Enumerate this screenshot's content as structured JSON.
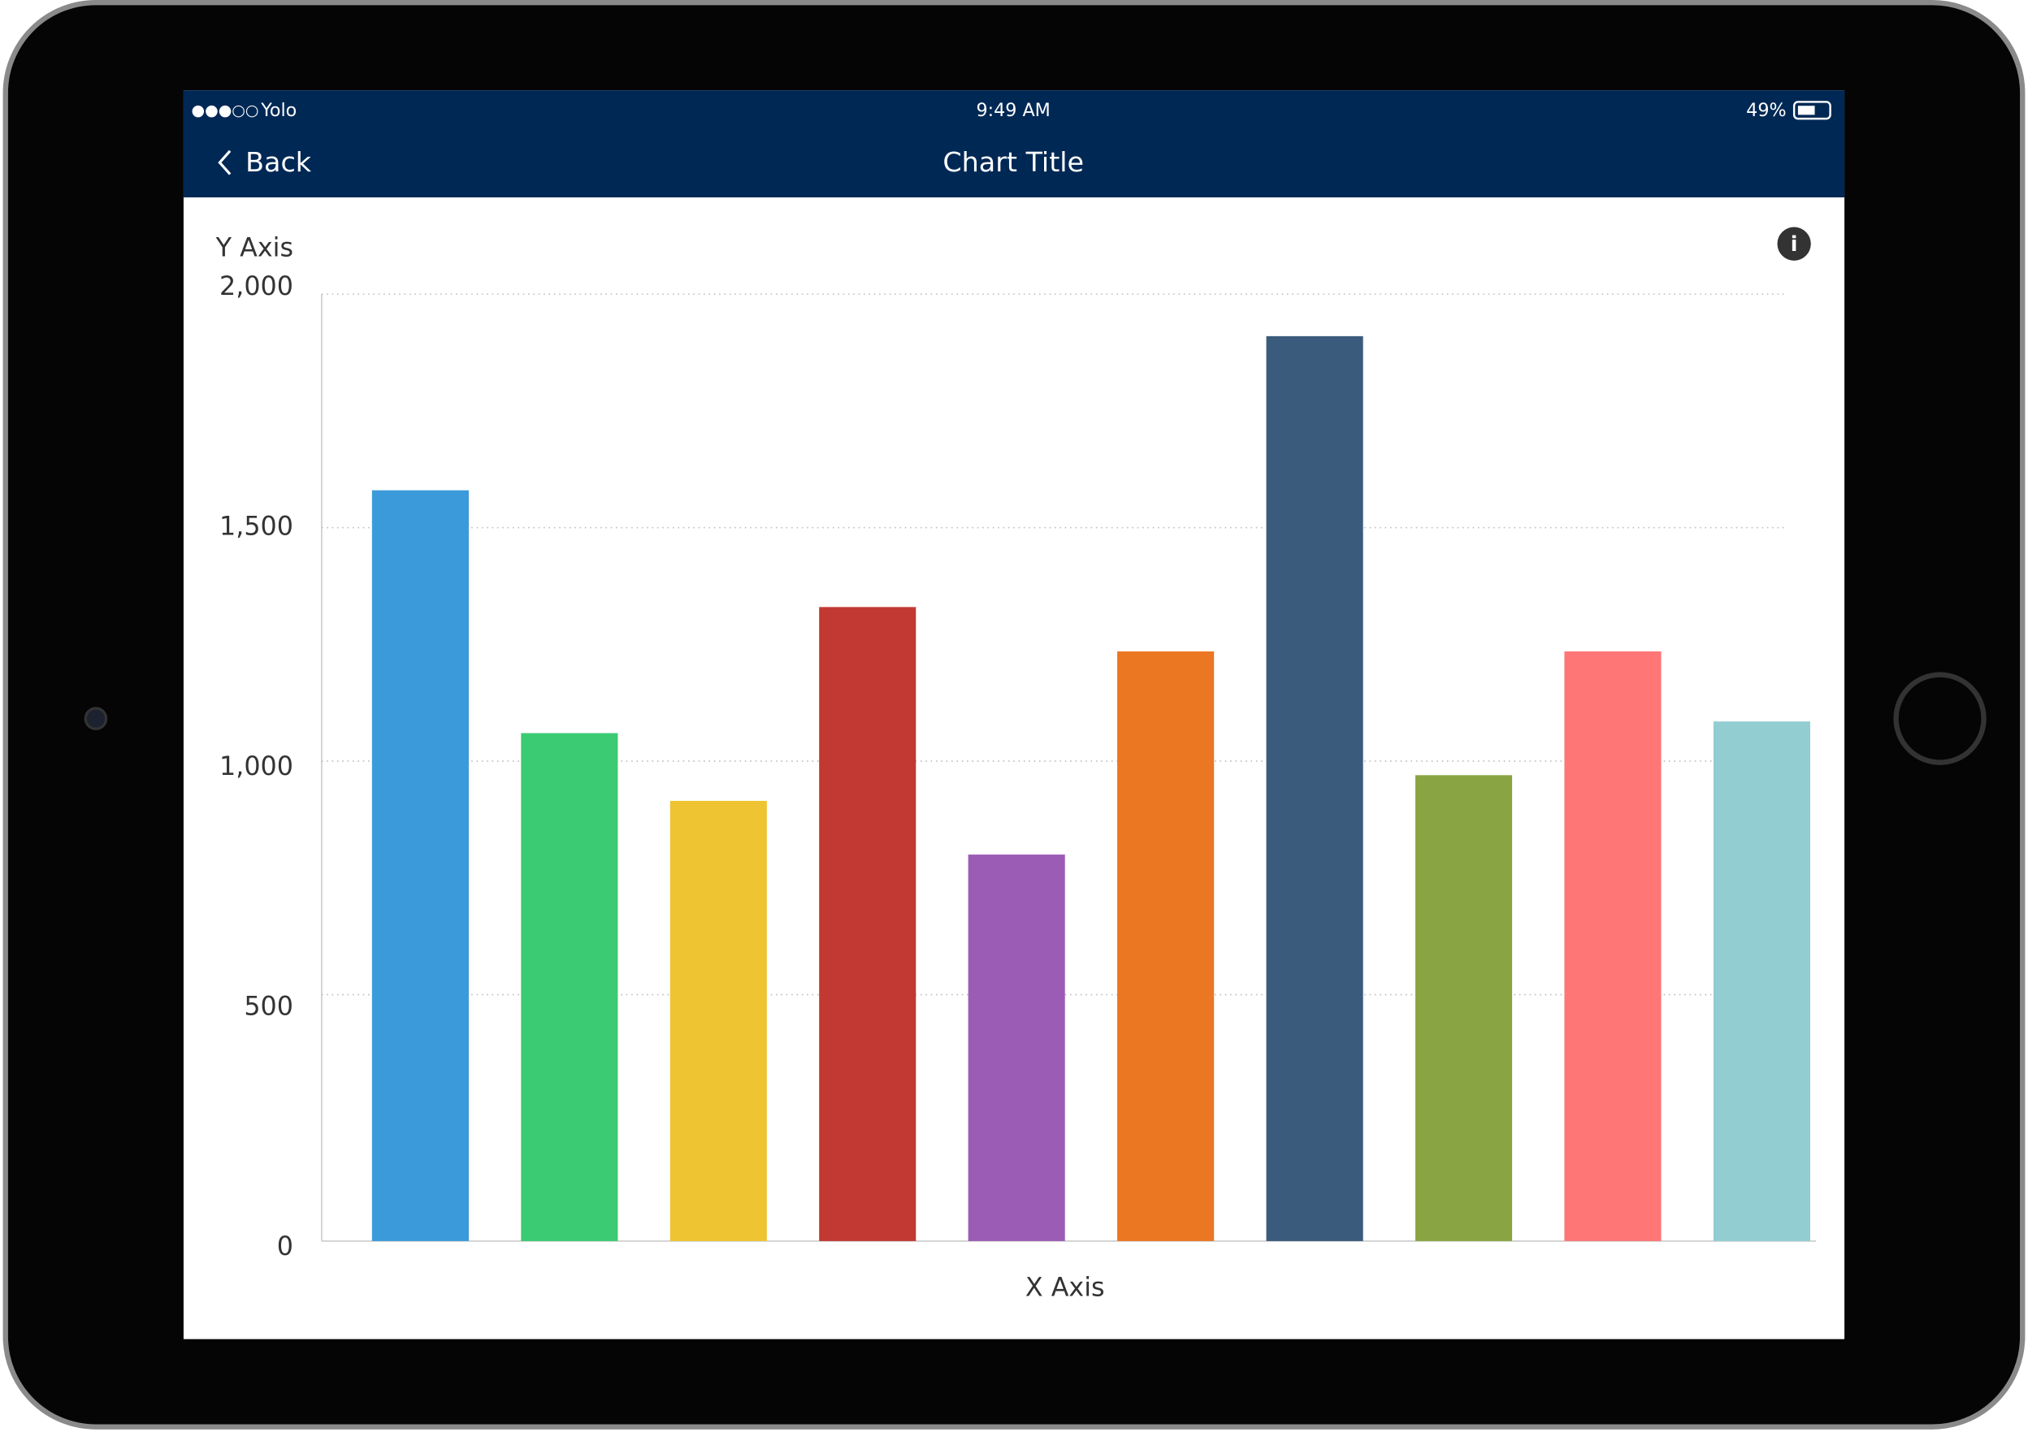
{
  "status_bar": {
    "carrier": "Yolo",
    "time": "9:49 AM",
    "battery": "49%"
  },
  "nav_bar": {
    "back": "Back",
    "title": "Chart Title"
  },
  "chart_data": {
    "type": "bar",
    "y_label": "Y Axis",
    "x_label": "X Axis",
    "values": [
      1580,
      1060,
      915,
      1330,
      800,
      1235,
      1910,
      970,
      1235,
      1085
    ],
    "colors": [
      "#3b9ad9",
      "#3bcb73",
      "#efc432",
      "#c13932",
      "#9a5cb4",
      "#ec7722",
      "#3a5b7c",
      "#89a543",
      "#fe7676",
      "#92cdd1"
    ],
    "ylim": [
      0,
      2000
    ],
    "yticks": [
      0,
      500,
      {
        "value": 1000,
        "label": "1,000"
      },
      {
        "value": 1500,
        "label": "1,500"
      },
      {
        "value": 2000,
        "label": "2,000"
      }
    ],
    "grid": true
  }
}
